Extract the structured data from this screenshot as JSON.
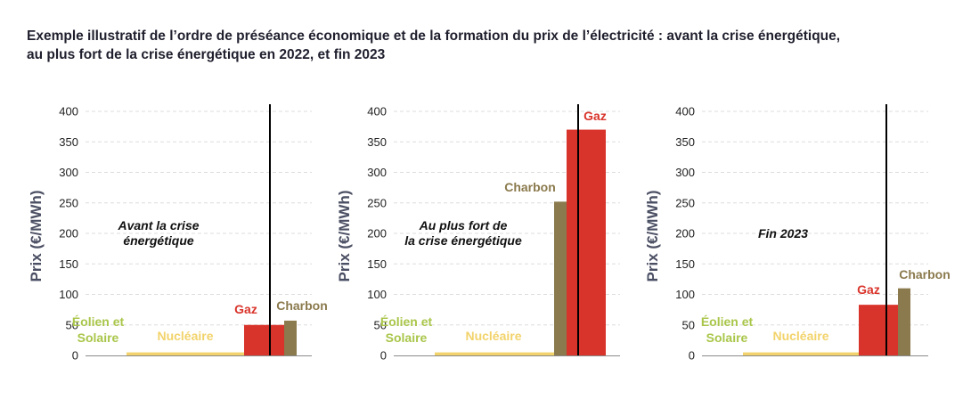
{
  "title_lines": [
    "Exemple illustratif de l’ordre de préséance économique et de la formation du prix de l’électricité :  avant la crise énergétique,",
    "au plus fort de la crise énergétique en 2022, et fin 2023"
  ],
  "colors": {
    "solar_wind": "#a9c64a",
    "nuclear": "#f2d36b",
    "gas": "#d9342b",
    "coal": "#8b7a4d",
    "axis_label": "#4b4f63",
    "grid": "#dddddd"
  },
  "chart_data": [
    {
      "type": "bar",
      "ylabel": "Prix (€/MWh)",
      "ylim": [
        0,
        400
      ],
      "yticks": [
        "0",
        "50",
        "100",
        "150",
        "200",
        "250",
        "300",
        "350",
        "400"
      ],
      "annotation": [
        "Avant la crise",
        "énergétique"
      ],
      "demand_line": "vertical black line at marginal plant",
      "bars": [
        {
          "label": [
            "Éolien et",
            "Solaire"
          ],
          "value": 0,
          "color_key": "solar_wind"
        },
        {
          "label": [
            "Nucléaire"
          ],
          "value": 5,
          "color_key": "nuclear"
        },
        {
          "label": [
            "Gaz"
          ],
          "value": 50,
          "color_key": "gas"
        },
        {
          "label": [
            "Charbon"
          ],
          "value": 57,
          "color_key": "coal"
        }
      ]
    },
    {
      "type": "bar",
      "ylabel": "Prix (€/MWh)",
      "ylim": [
        0,
        400
      ],
      "yticks": [
        "0",
        "50",
        "100",
        "150",
        "200",
        "250",
        "300",
        "350",
        "400"
      ],
      "annotation": [
        "Au plus fort de",
        "la crise énergétique"
      ],
      "demand_line": "vertical black line at marginal plant",
      "bars": [
        {
          "label": [
            "Éolien et",
            "Solaire"
          ],
          "value": 0,
          "color_key": "solar_wind"
        },
        {
          "label": [
            "Nucléaire"
          ],
          "value": 5,
          "color_key": "nuclear"
        },
        {
          "label": [
            "Charbon"
          ],
          "value": 252,
          "color_key": "coal"
        },
        {
          "label": [
            "Gaz"
          ],
          "value": 370,
          "color_key": "gas"
        }
      ]
    },
    {
      "type": "bar",
      "ylabel": "Prix (€/MWh)",
      "ylim": [
        0,
        400
      ],
      "yticks": [
        "0",
        "50",
        "100",
        "150",
        "200",
        "250",
        "300",
        "350",
        "400"
      ],
      "annotation": [
        "Fin 2023"
      ],
      "demand_line": "vertical black line at marginal plant",
      "bars": [
        {
          "label": [
            "Éolien et",
            "Solaire"
          ],
          "value": 0,
          "color_key": "solar_wind"
        },
        {
          "label": [
            "Nucléaire"
          ],
          "value": 5,
          "color_key": "nuclear"
        },
        {
          "label": [
            "Gaz"
          ],
          "value": 83,
          "color_key": "gas"
        },
        {
          "label": [
            "Charbon"
          ],
          "value": 110,
          "color_key": "coal"
        }
      ]
    }
  ]
}
